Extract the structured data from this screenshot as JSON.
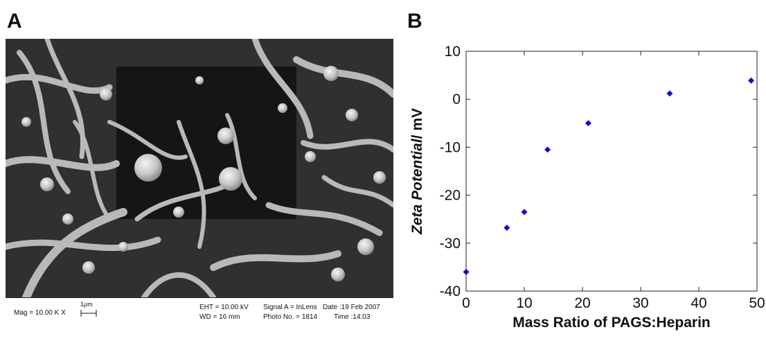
{
  "panels": {
    "a_label": "A",
    "b_label": "B"
  },
  "sem": {
    "mag": "Mag = 10.00 K X",
    "scale_bar": "1μm",
    "eht": "EHT = 10.00 kV",
    "wd": "WD =   16 mm",
    "signal": "Signal A = InLens",
    "photo": "Photo No. = 1814",
    "date": "Date :19 Feb 2007",
    "time": "Time :14:03"
  },
  "chart_data": {
    "type": "scatter",
    "title": "",
    "xlabel": "Mass Ratio of PAGS:Heparin",
    "ylabel_parts": [
      "Zeta Potential",
      "/ mV"
    ],
    "xlim": [
      0,
      50
    ],
    "ylim": [
      -40,
      10
    ],
    "xticks": [
      "0",
      "10",
      "20",
      "30",
      "40",
      "50"
    ],
    "yticks": [
      "10",
      "0",
      "-10",
      "-20",
      "-30",
      "-40"
    ],
    "marker_color": "#1010c8",
    "points": [
      {
        "x": 0,
        "y": -36
      },
      {
        "x": 7,
        "y": -26.8
      },
      {
        "x": 10,
        "y": -23.5
      },
      {
        "x": 14,
        "y": -10.5
      },
      {
        "x": 21,
        "y": -5
      },
      {
        "x": 35,
        "y": 1.2
      },
      {
        "x": 49,
        "y": 3.9
      }
    ]
  }
}
